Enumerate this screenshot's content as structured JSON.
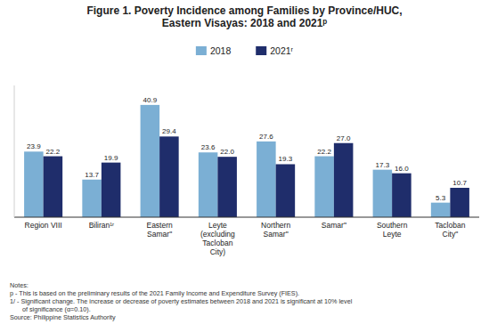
{
  "chart_data": {
    "type": "bar",
    "title": "Figure 1. Poverty Incidence among Families by Province/HUC,\nEastern  Visayas: 2018 and 2021ᵖ",
    "categories": [
      "Region VIII",
      "Biliran¹ʳ",
      "Eastern\nSamarʺ",
      "Leyte\n(excluding\nTacloban\nCity)",
      "Northern\nSamarʺ",
      "Samarʺ",
      "Southern\nLeyte",
      "Tacloban\nCityʺ"
    ],
    "series": [
      {
        "name": "2018",
        "color": "#7BAFD4",
        "values": [
          23.9,
          13.7,
          40.9,
          23.6,
          27.6,
          22.2,
          17.3,
          5.3
        ],
        "value_labels": [
          "23.9",
          "13.7",
          "40.9",
          "23.6",
          "27.6",
          "22.2",
          "17.3",
          "5.3"
        ]
      },
      {
        "name": "2021ʳ",
        "color": "#1F2D6B",
        "values": [
          22.2,
          19.9,
          29.4,
          22.0,
          19.3,
          27.0,
          16.0,
          10.7
        ],
        "value_labels": [
          "22.2",
          "19.9",
          "29.4",
          "22.0",
          "19.3",
          "27.0",
          "16.0",
          "10.7"
        ]
      }
    ],
    "ylim": [
      0,
      48
    ],
    "data_labels": true,
    "tick_labels": "x",
    "grid": false,
    "legend": "top",
    "annotations": [
      "Notes:",
      "p - This is based on the preliminary results of the 2021 Family Income and Expenditure Survey (FIES).",
      "1/ - Significant change. The increase or decrease of poverty estimates between 2018 and 2021 is significant at 10% level",
      "       of significance (α=0.10).",
      "Source: Philippine Statistics Authority"
    ]
  }
}
